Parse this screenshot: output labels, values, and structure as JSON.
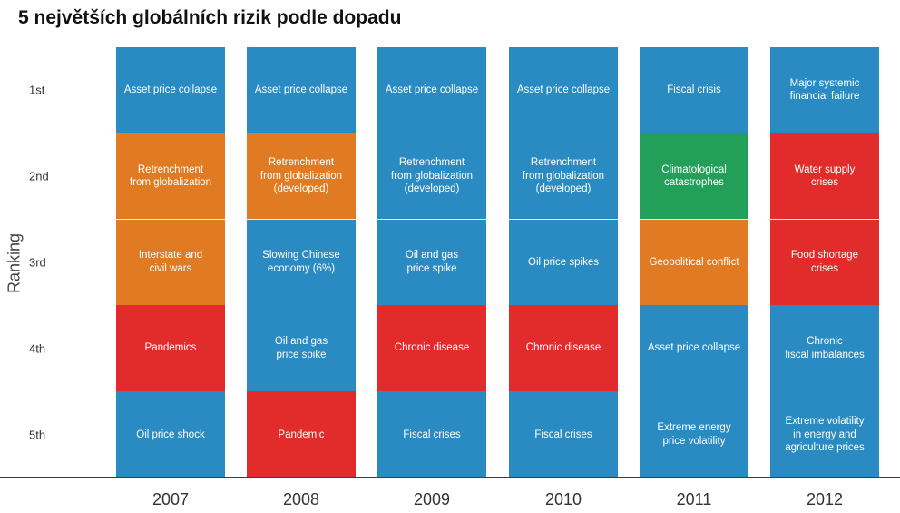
{
  "chart_data": {
    "type": "table",
    "title": "5 největších globálních rizik podle dopadu",
    "ylabel": "Ranking",
    "ranks": [
      "1st",
      "2nd",
      "3rd",
      "4th",
      "5th"
    ],
    "categories": [
      "2007",
      "2008",
      "2009",
      "2010",
      "2011",
      "2012"
    ],
    "colors": {
      "economic": "#2a8bc2",
      "geopolitical": "#e07b24",
      "societal": "#e22b2b",
      "environmental": "#22a05a"
    },
    "columns": [
      {
        "year": "2007",
        "cells": [
          {
            "label": "Asset price collapse",
            "category": "economic"
          },
          {
            "label": "Retrenchment\nfrom globalization",
            "category": "geopolitical"
          },
          {
            "label": "Interstate and\ncivil wars",
            "category": "geopolitical"
          },
          {
            "label": "Pandemics",
            "category": "societal"
          },
          {
            "label": "Oil price shock",
            "category": "economic"
          }
        ]
      },
      {
        "year": "2008",
        "cells": [
          {
            "label": "Asset price collapse",
            "category": "economic"
          },
          {
            "label": "Retrenchment\nfrom globalization\n(developed)",
            "category": "geopolitical"
          },
          {
            "label": "Slowing Chinese\neconomy (6%)",
            "category": "economic"
          },
          {
            "label": "Oil and gas\nprice spike",
            "category": "economic"
          },
          {
            "label": "Pandemic",
            "category": "societal"
          }
        ]
      },
      {
        "year": "2009",
        "cells": [
          {
            "label": "Asset price collapse",
            "category": "economic"
          },
          {
            "label": "Retrenchment\nfrom globalization\n(developed)",
            "category": "economic"
          },
          {
            "label": "Oil and gas\nprice spike",
            "category": "economic"
          },
          {
            "label": "Chronic disease",
            "category": "societal"
          },
          {
            "label": "Fiscal crises",
            "category": "economic"
          }
        ]
      },
      {
        "year": "2010",
        "cells": [
          {
            "label": "Asset price collapse",
            "category": "economic"
          },
          {
            "label": "Retrenchment\nfrom globalization\n(developed)",
            "category": "economic"
          },
          {
            "label": "Oil price spikes",
            "category": "economic"
          },
          {
            "label": "Chronic disease",
            "category": "societal"
          },
          {
            "label": "Fiscal crises",
            "category": "economic"
          }
        ]
      },
      {
        "year": "2011",
        "cells": [
          {
            "label": "Fiscal crisis",
            "category": "economic"
          },
          {
            "label": "Climatological\ncatastrophes",
            "category": "environmental"
          },
          {
            "label": "Geopolitical conflict",
            "category": "geopolitical"
          },
          {
            "label": "Asset price collapse",
            "category": "economic"
          },
          {
            "label": "Extreme energy\nprice volatility",
            "category": "economic"
          }
        ]
      },
      {
        "year": "2012",
        "cells": [
          {
            "label": "Major systemic\nfinancial failure",
            "category": "economic"
          },
          {
            "label": "Water supply\ncrises",
            "category": "societal"
          },
          {
            "label": "Food shortage\ncrises",
            "category": "societal"
          },
          {
            "label": "Chronic\nfiscal imbalances",
            "category": "economic"
          },
          {
            "label": "Extreme volatility\nin energy and\nagriculture prices",
            "category": "economic"
          }
        ]
      }
    ]
  }
}
